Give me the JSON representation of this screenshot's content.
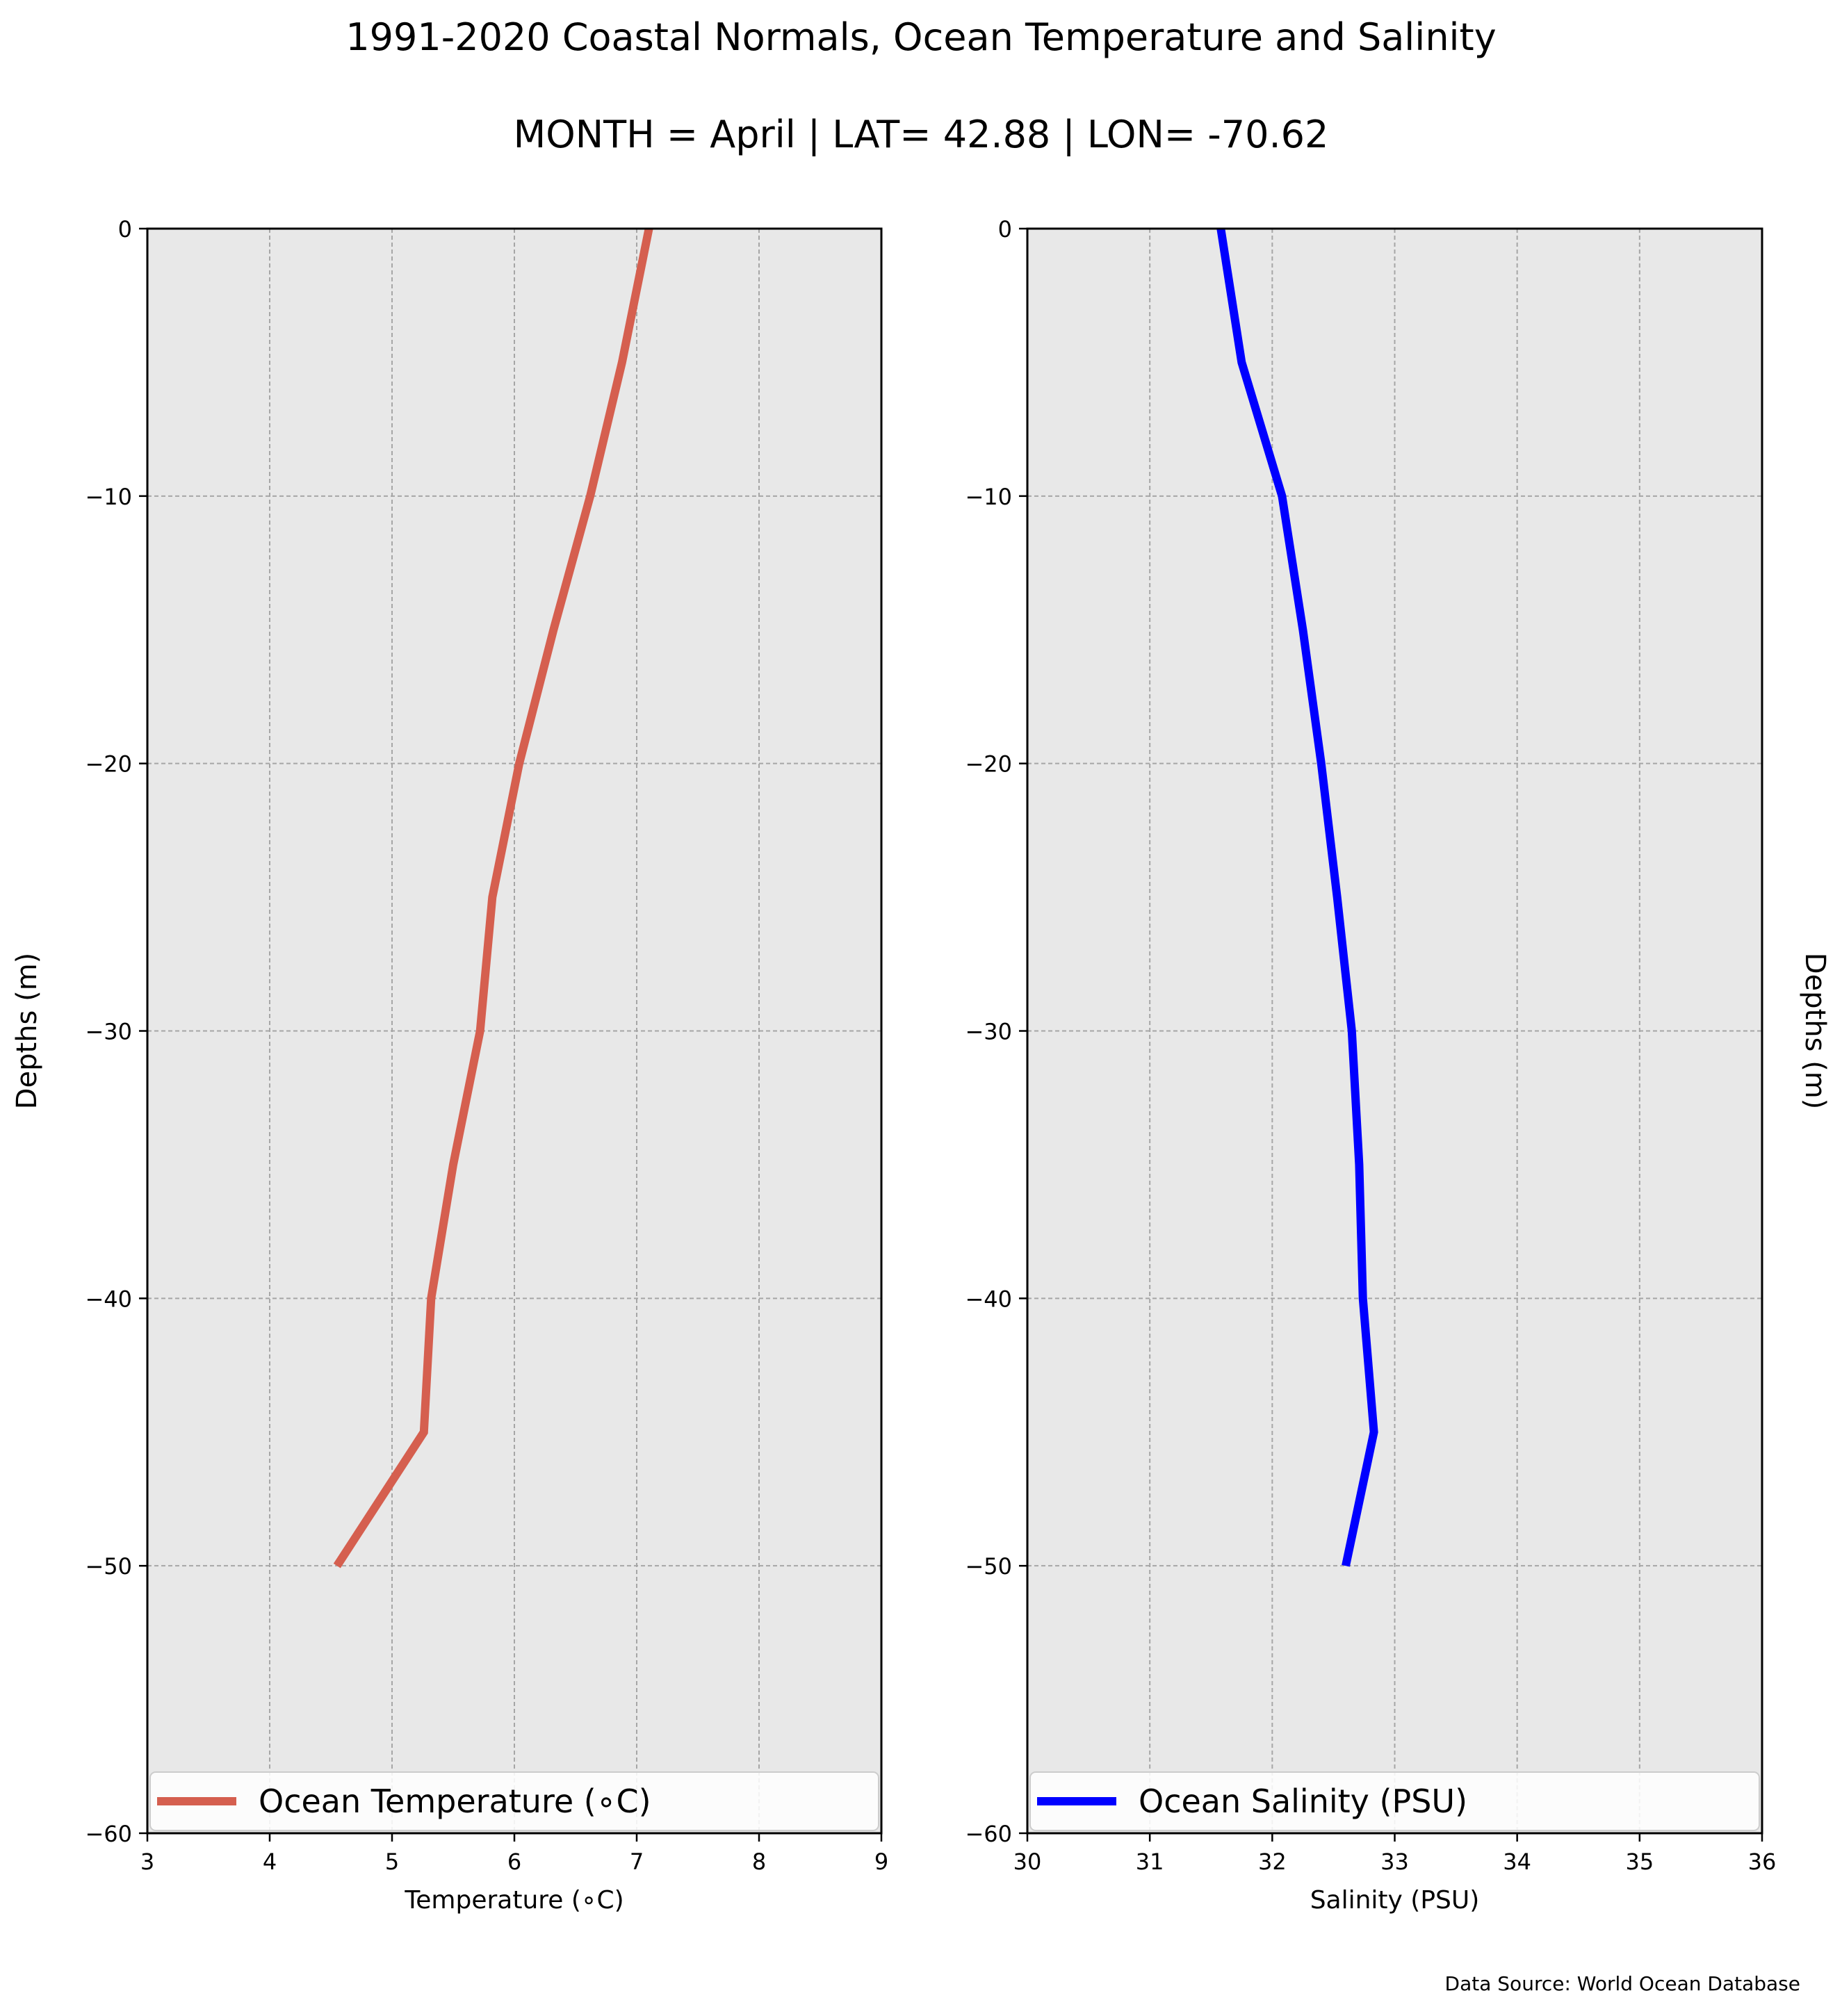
{
  "title": "1991-2020 Coastal Normals, Ocean Temperature and Salinity",
  "subtitle": "MONTH = April | LAT= 42.88 | LON= -70.62",
  "source_note": "Data Source: World Ocean Database",
  "colors": {
    "background": "#ffffff",
    "plot_background": "#e8e8e8",
    "temperature_line": "#d55f4f",
    "salinity_line": "#0000ff"
  },
  "chart_data": [
    {
      "type": "line",
      "xlabel": "Temperature ($^\\circ$C)",
      "xlabel_display": "Temperature (∘C)",
      "ylabel": "Depths (m)",
      "xlim": [
        3,
        9
      ],
      "ylim": [
        -60,
        0
      ],
      "xticks": [
        3,
        4,
        5,
        6,
        7,
        8,
        9
      ],
      "xtick_labels": [
        "3",
        "4",
        "5",
        "6",
        "7",
        "8",
        "9"
      ],
      "yticks": [
        0,
        -10,
        -20,
        -30,
        -40,
        -50,
        -60
      ],
      "ytick_labels": [
        "0",
        "−10",
        "−20",
        "−30",
        "−40",
        "−50",
        "−60"
      ],
      "grid": true,
      "legend_position": "lower center",
      "series": [
        {
          "name": "Ocean Temperature (∘C)",
          "x": [
            7.1,
            6.88,
            6.62,
            6.32,
            6.04,
            5.82,
            5.72,
            5.5,
            5.32,
            5.26,
            4.55
          ],
          "y": [
            0,
            -5,
            -10,
            -15,
            -20,
            -25,
            -30,
            -35,
            -40,
            -45,
            -50
          ]
        }
      ]
    },
    {
      "type": "line",
      "xlabel": "Salinity (PSU)",
      "ylabel": "Depths (m)",
      "xlim": [
        30,
        36
      ],
      "ylim": [
        -60,
        0
      ],
      "xticks": [
        30,
        31,
        32,
        33,
        34,
        35,
        36
      ],
      "xtick_labels": [
        "30",
        "31",
        "32",
        "33",
        "34",
        "35",
        "36"
      ],
      "yticks": [
        0,
        -10,
        -20,
        -30,
        -40,
        -50,
        -60
      ],
      "ytick_labels": [
        "0",
        "−10",
        "−20",
        "−30",
        "−40",
        "−50",
        "−60"
      ],
      "grid": true,
      "legend_position": "lower center",
      "series": [
        {
          "name": "Ocean Salinity (PSU)",
          "x": [
            31.58,
            31.75,
            32.08,
            32.25,
            32.4,
            32.53,
            32.65,
            32.71,
            32.74,
            32.83,
            32.6
          ],
          "y": [
            0,
            -5,
            -10,
            -15,
            -20,
            -25,
            -30,
            -35,
            -40,
            -45,
            -50
          ]
        }
      ]
    }
  ]
}
